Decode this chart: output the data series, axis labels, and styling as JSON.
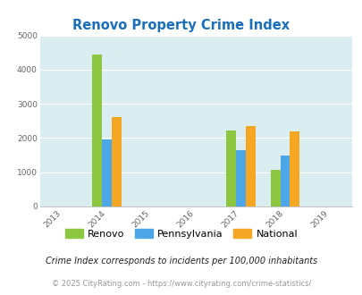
{
  "title": "Renovo Property Crime Index",
  "title_color": "#1a6fbd",
  "years": [
    2013,
    2014,
    2015,
    2016,
    2017,
    2018,
    2019
  ],
  "data": {
    "2014": {
      "renovo": 4430,
      "pennsylvania": 1950,
      "national": 2600
    },
    "2017": {
      "renovo": 2220,
      "pennsylvania": 1650,
      "national": 2360
    },
    "2018": {
      "renovo": 1080,
      "pennsylvania": 1490,
      "national": 2200
    }
  },
  "bar_width": 0.22,
  "colors": {
    "renovo": "#8dc63f",
    "pennsylvania": "#4da6e8",
    "national": "#f5a623"
  },
  "ylim": [
    0,
    5000
  ],
  "yticks": [
    0,
    1000,
    2000,
    3000,
    4000,
    5000
  ],
  "xlim": [
    2012.5,
    2019.5
  ],
  "background_color": "#daedf0",
  "grid_color": "#ffffff",
  "legend_labels": [
    "Renovo",
    "Pennsylvania",
    "National"
  ],
  "footnote1": "Crime Index corresponds to incidents per 100,000 inhabitants",
  "footnote2": "© 2025 CityRating.com - https://www.cityrating.com/crime-statistics/",
  "footnote1_color": "#222222",
  "footnote2_color": "#999999"
}
